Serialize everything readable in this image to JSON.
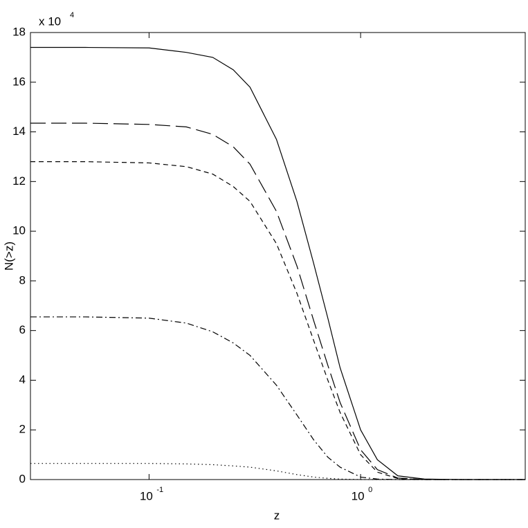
{
  "chart_data": {
    "type": "line",
    "x_label": "z",
    "y_label": "N(>z)",
    "y_multiplier": {
      "base": "x 10",
      "exponent": "4"
    },
    "x": [
      0.0275,
      0.05,
      0.1,
      0.15,
      0.2,
      0.25,
      0.3,
      0.4,
      0.5,
      0.6,
      0.7,
      0.8,
      1.0,
      1.2,
      1.5,
      2,
      3,
      6
    ],
    "series": [
      {
        "color": "#000000",
        "dash": "solid",
        "values": [
          17.4,
          17.4,
          17.38,
          17.2,
          17.0,
          16.5,
          15.8,
          13.7,
          11.2,
          8.7,
          6.5,
          4.5,
          2.0,
          0.8,
          0.15,
          0.02,
          0,
          0
        ]
      },
      {
        "color": "#000000",
        "dash": "long-dash",
        "values": [
          14.35,
          14.35,
          14.3,
          14.2,
          13.9,
          13.4,
          12.7,
          10.8,
          8.6,
          6.4,
          4.6,
          3.1,
          1.2,
          0.4,
          0.06,
          0,
          0,
          0
        ]
      },
      {
        "color": "#000000",
        "dash": "dash",
        "values": [
          12.8,
          12.8,
          12.75,
          12.6,
          12.3,
          11.8,
          11.2,
          9.5,
          7.5,
          5.6,
          4.0,
          2.7,
          1.0,
          0.3,
          0.04,
          0,
          0,
          0
        ]
      },
      {
        "color": "#000000",
        "dash": "dash-dot",
        "values": [
          6.55,
          6.55,
          6.5,
          6.3,
          5.95,
          5.5,
          5.0,
          3.8,
          2.6,
          1.6,
          0.9,
          0.5,
          0.1,
          0.02,
          0,
          0,
          0,
          0
        ]
      },
      {
        "color": "#000000",
        "dash": "dot",
        "values": [
          0.65,
          0.65,
          0.65,
          0.63,
          0.6,
          0.55,
          0.5,
          0.35,
          0.2,
          0.1,
          0.05,
          0.02,
          0,
          0,
          0,
          0,
          0,
          0
        ]
      }
    ],
    "xscale": "log",
    "xlim": [
      0.0275,
      6.0
    ],
    "ylim": [
      0,
      18
    ],
    "xticks": [
      {
        "value": 0.1,
        "label": "10",
        "exponent": "-1"
      },
      {
        "value": 1,
        "label": "10",
        "exponent": "0"
      }
    ],
    "yticks": [
      0,
      2,
      4,
      6,
      8,
      10,
      12,
      14,
      16,
      18
    ],
    "grid": false
  }
}
